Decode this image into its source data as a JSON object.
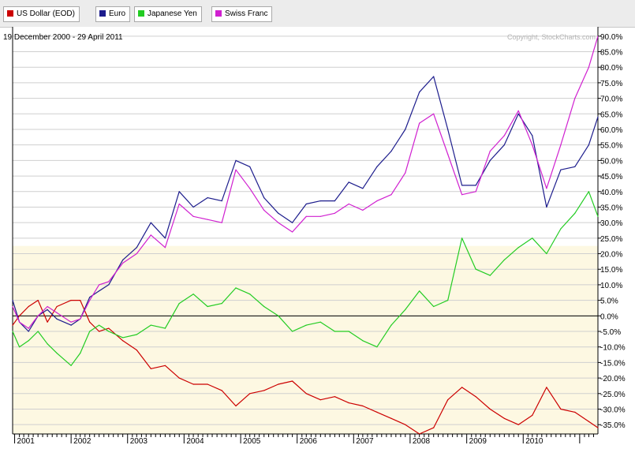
{
  "chart_data": {
    "type": "line",
    "date_range": "19 December 2000 - 29 April 2011",
    "copyright": "Copyright, StockCharts.com",
    "x_ticks": [
      "2001",
      "2002",
      "2003",
      "2004",
      "2005",
      "2006",
      "2007",
      "2008",
      "2009",
      "2010"
    ],
    "y_ticks": [
      "90.0%",
      "85.0%",
      "80.0%",
      "75.0%",
      "70.0%",
      "65.0%",
      "60.0%",
      "55.0%",
      "50.0%",
      "45.0%",
      "40.0%",
      "35.0%",
      "30.0%",
      "25.0%",
      "20.0%",
      "15.0%",
      "10.0%",
      "5.0%",
      "0.0%",
      "-5.0%",
      "-10.0%",
      "-15.0%",
      "-20.0%",
      "-25.0%",
      "-30.0%",
      "-35.0%"
    ],
    "ylim": [
      -38,
      93
    ],
    "xlim": [
      "2000-12-19",
      "2011-04-29"
    ],
    "series": [
      {
        "name": "US Dollar (EOD)",
        "color": "#cc0000",
        "x": [
          "2000-12-19",
          "2001-02-01",
          "2001-04-01",
          "2001-06-01",
          "2001-08-01",
          "2001-10-01",
          "2002-01-01",
          "2002-03-01",
          "2002-05-01",
          "2002-07-01",
          "2002-09-01",
          "2002-12-01",
          "2003-03-01",
          "2003-06-01",
          "2003-09-01",
          "2003-12-01",
          "2004-03-01",
          "2004-06-01",
          "2004-09-01",
          "2004-12-01",
          "2005-03-01",
          "2005-06-01",
          "2005-09-01",
          "2005-12-01",
          "2006-03-01",
          "2006-06-01",
          "2006-09-01",
          "2006-12-01",
          "2007-03-01",
          "2007-06-01",
          "2007-09-01",
          "2007-12-01",
          "2008-03-01",
          "2008-06-01",
          "2008-09-01",
          "2008-12-01",
          "2009-03-01",
          "2009-06-01",
          "2009-09-01",
          "2009-12-01",
          "2010-03-01",
          "2010-06-01",
          "2010-09-01",
          "2010-12-01",
          "2011-03-01",
          "2011-04-29"
        ],
        "y": [
          -3,
          0,
          3,
          5,
          -2,
          3,
          5,
          5,
          -2,
          -5,
          -4,
          -8,
          -11,
          -17,
          -16,
          -20,
          -22,
          -22,
          -24,
          -29,
          -25,
          -24,
          -22,
          -21,
          -25,
          -27,
          -26,
          -28,
          -29,
          -31,
          -33,
          -35,
          -38,
          -36,
          -27,
          -23,
          -26,
          -30,
          -33,
          -35,
          -32,
          -23,
          -30,
          -31,
          -34,
          -36
        ]
      },
      {
        "name": "Euro",
        "color": "#1c1c8c",
        "x": [
          "2000-12-19",
          "2001-02-01",
          "2001-04-01",
          "2001-06-01",
          "2001-08-01",
          "2001-10-01",
          "2002-01-01",
          "2002-03-01",
          "2002-05-01",
          "2002-07-01",
          "2002-09-01",
          "2002-12-01",
          "2003-03-01",
          "2003-06-01",
          "2003-09-01",
          "2003-12-01",
          "2004-03-01",
          "2004-06-01",
          "2004-09-01",
          "2004-12-01",
          "2005-03-01",
          "2005-06-01",
          "2005-09-01",
          "2005-12-01",
          "2006-03-01",
          "2006-06-01",
          "2006-09-01",
          "2006-12-01",
          "2007-03-01",
          "2007-06-01",
          "2007-09-01",
          "2007-12-01",
          "2008-03-01",
          "2008-06-01",
          "2008-09-01",
          "2008-12-01",
          "2009-03-01",
          "2009-06-01",
          "2009-09-01",
          "2009-12-01",
          "2010-03-01",
          "2010-06-01",
          "2010-09-01",
          "2010-12-01",
          "2011-03-01",
          "2011-04-29"
        ],
        "y": [
          5,
          -2,
          -5,
          0,
          2,
          -1,
          -3,
          -1,
          6,
          8,
          10,
          18,
          22,
          30,
          25,
          40,
          35,
          38,
          37,
          50,
          48,
          38,
          33,
          30,
          36,
          37,
          37,
          43,
          41,
          48,
          53,
          60,
          72,
          77,
          60,
          42,
          42,
          50,
          55,
          65,
          58,
          35,
          47,
          48,
          55,
          64
        ]
      },
      {
        "name": "Japanese Yen",
        "color": "#22cc22",
        "x": [
          "2000-12-19",
          "2001-02-01",
          "2001-04-01",
          "2001-06-01",
          "2001-08-01",
          "2001-10-01",
          "2002-01-01",
          "2002-03-01",
          "2002-05-01",
          "2002-07-01",
          "2002-09-01",
          "2002-12-01",
          "2003-03-01",
          "2003-06-01",
          "2003-09-01",
          "2003-12-01",
          "2004-03-01",
          "2004-06-01",
          "2004-09-01",
          "2004-12-01",
          "2005-03-01",
          "2005-06-01",
          "2005-09-01",
          "2005-12-01",
          "2006-03-01",
          "2006-06-01",
          "2006-09-01",
          "2006-12-01",
          "2007-03-01",
          "2007-06-01",
          "2007-09-01",
          "2007-12-01",
          "2008-03-01",
          "2008-06-01",
          "2008-09-01",
          "2008-12-01",
          "2009-03-01",
          "2009-06-01",
          "2009-09-01",
          "2009-12-01",
          "2010-03-01",
          "2010-06-01",
          "2010-09-01",
          "2010-12-01",
          "2011-03-01",
          "2011-04-29"
        ],
        "y": [
          -5,
          -10,
          -8,
          -5,
          -9,
          -12,
          -16,
          -12,
          -5,
          -3,
          -5,
          -7,
          -6,
          -3,
          -4,
          4,
          7,
          3,
          4,
          9,
          7,
          3,
          0,
          -5,
          -3,
          -2,
          -5,
          -5,
          -8,
          -10,
          -3,
          2,
          8,
          3,
          5,
          25,
          15,
          13,
          18,
          22,
          25,
          20,
          28,
          33,
          40,
          32
        ]
      },
      {
        "name": "Swiss Franc",
        "color": "#d020d0",
        "x": [
          "2000-12-19",
          "2001-02-01",
          "2001-04-01",
          "2001-06-01",
          "2001-08-01",
          "2001-10-01",
          "2002-01-01",
          "2002-03-01",
          "2002-05-01",
          "2002-07-01",
          "2002-09-01",
          "2002-12-01",
          "2003-03-01",
          "2003-06-01",
          "2003-09-01",
          "2003-12-01",
          "2004-03-01",
          "2004-06-01",
          "2004-09-01",
          "2004-12-01",
          "2005-03-01",
          "2005-06-01",
          "2005-09-01",
          "2005-12-01",
          "2006-03-01",
          "2006-06-01",
          "2006-09-01",
          "2006-12-01",
          "2007-03-01",
          "2007-06-01",
          "2007-09-01",
          "2007-12-01",
          "2008-03-01",
          "2008-06-01",
          "2008-09-01",
          "2008-12-01",
          "2009-03-01",
          "2009-06-01",
          "2009-09-01",
          "2009-12-01",
          "2010-03-01",
          "2010-06-01",
          "2010-09-01",
          "2010-12-01",
          "2011-03-01",
          "2011-04-29"
        ],
        "y": [
          3,
          -2,
          -4,
          0,
          3,
          1,
          -2,
          -1,
          5,
          10,
          11,
          17,
          20,
          26,
          22,
          36,
          32,
          31,
          30,
          47,
          41,
          34,
          30,
          27,
          32,
          32,
          33,
          36,
          34,
          37,
          39,
          46,
          62,
          65,
          52,
          39,
          40,
          53,
          58,
          66,
          55,
          41,
          55,
          70,
          80,
          90
        ]
      }
    ]
  }
}
